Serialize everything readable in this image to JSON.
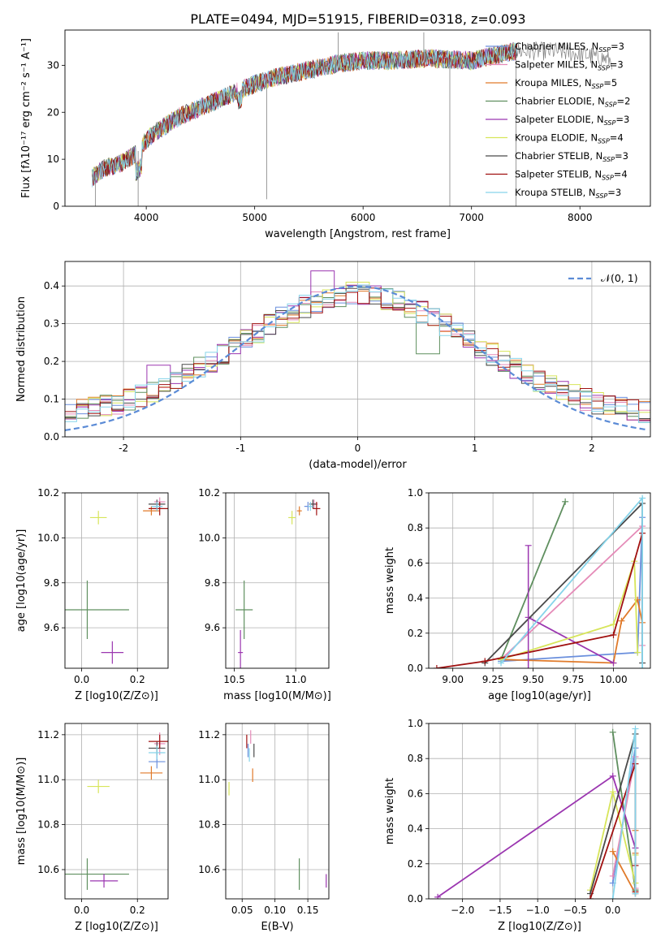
{
  "title": "PLATE=0494, MJD=51915, FIBERID=0318, z=0.093",
  "colors": {
    "Chabrier MILES": "#6a8fdd",
    "Salpeter MILES": "#e58bb8",
    "Kroupa MILES": "#e07a2a",
    "Chabrier ELODIE": "#5f8f5f",
    "Salpeter ELODIE": "#9b36b0",
    "Kroupa ELODIE": "#d7e55a",
    "Chabrier STELIB": "#4a4a4a",
    "Salpeter STELIB": "#a01010",
    "Kroupa STELIB": "#86d4ea",
    "observed": "#808080",
    "gaussian": "#5b8bd6"
  },
  "chart_data": [
    {
      "id": "spectrum",
      "type": "line",
      "xlabel": "wavelength [Angstrom, rest frame]",
      "ylabel": "Flux [fλ10⁻¹⁷ erg cm⁻² s⁻¹ A⁻¹]",
      "xlim": [
        3250,
        8650
      ],
      "ylim": [
        0,
        37.5
      ],
      "xticks": [
        4000,
        5000,
        6000,
        7000,
        8000
      ],
      "yticks": [
        0,
        10,
        20,
        30
      ],
      "legend_placement": "right",
      "continuum": {
        "x": [
          3500,
          3600,
          3750,
          3900,
          4000,
          4100,
          4300,
          4500,
          4800,
          5000,
          5200,
          5500,
          5800,
          6000,
          6300,
          6600,
          7000,
          7400,
          7800,
          8100,
          8300
        ],
        "y": [
          6,
          8,
          9,
          11,
          14,
          16,
          19,
          21,
          24,
          26,
          27.5,
          29,
          30.5,
          31,
          31,
          31.5,
          31,
          33,
          33,
          32,
          31
        ]
      },
      "spikes": [
        {
          "x": 3530,
          "y": 0
        },
        {
          "x": 3925,
          "y": 0
        },
        {
          "x": 5110,
          "y": 1.5
        },
        {
          "x": 5770,
          "y": 37
        },
        {
          "x": 6560,
          "y": 37
        },
        {
          "x": 6800,
          "y": 0
        },
        {
          "x": 7410,
          "y": 0
        }
      ],
      "legend": [
        "Chabrier MILES, NSSP=3",
        "Salpeter MILES, NSSP=3",
        "Kroupa MILES, NSSP=5",
        "Chabrier ELODIE, NSSP=2",
        "Salpeter ELODIE, NSSP=3",
        "Kroupa ELODIE, NSSP=4",
        "Chabrier STELIB, NSSP=3",
        "Salpeter STELIB, NSSP=4",
        "Kroupa STELIB, NSSP=3"
      ]
    },
    {
      "id": "residuals",
      "type": "line",
      "xlabel": "(data-model)/error",
      "ylabel": "Normed distribution",
      "xlim": [
        -2.5,
        2.5
      ],
      "ylim": [
        0,
        0.465
      ],
      "xticks": [
        -2,
        -1,
        0,
        1,
        2
      ],
      "yticks": [
        0.0,
        0.1,
        0.2,
        0.3,
        0.4
      ],
      "grid": true,
      "bin_width": 0.1,
      "legend": [
        "𝒩(0, 1)"
      ],
      "legend_placement": "top-right",
      "peak_bins": [
        {
          "x": -0.3,
          "y": 0.44,
          "series": "Salpeter ELODIE"
        },
        {
          "x": 0.0,
          "y": 0.41,
          "series": "Kroupa ELODIE"
        },
        {
          "x": 0.6,
          "y": 0.22,
          "series": "Chabrier ELODIE"
        },
        {
          "x": -1.7,
          "y": 0.19,
          "series": "Salpeter ELODIE"
        }
      ]
    },
    {
      "id": "age-vs-Z",
      "type": "scatter",
      "xlabel": "Z [log10(Z/Z⊙)]",
      "ylabel": "age  [log10(age/yr)]",
      "xlim": [
        -0.06,
        0.31
      ],
      "ylim": [
        9.42,
        10.2
      ],
      "xticks": [
        0.0,
        0.2
      ],
      "xticklabels": [
        "0.0",
        "0.2"
      ],
      "yticks": [
        9.6,
        9.8,
        10.0,
        10.2
      ],
      "yticklabels": [
        "9.6",
        "9.8",
        "10.0",
        "10.2"
      ],
      "grid": true,
      "points": [
        {
          "series": "Chabrier MILES",
          "x": 0.27,
          "y": 10.14,
          "xerr": 0.02,
          "yerr": 0.02
        },
        {
          "series": "Salpeter MILES",
          "x": 0.28,
          "y": 10.16,
          "xerr": 0.02,
          "yerr": 0.02
        },
        {
          "series": "Kroupa MILES",
          "x": 0.25,
          "y": 10.12,
          "xerr": 0.03,
          "yerr": 0.02
        },
        {
          "series": "Chabrier ELODIE",
          "x": 0.02,
          "y": 9.68,
          "xerr": 0.15,
          "yerr": 0.13
        },
        {
          "series": "Salpeter ELODIE",
          "x": 0.11,
          "y": 9.49,
          "xerr": 0.04,
          "yerr": 0.05
        },
        {
          "series": "Kroupa ELODIE",
          "x": 0.06,
          "y": 10.09,
          "xerr": 0.03,
          "yerr": 0.03
        },
        {
          "series": "Chabrier STELIB",
          "x": 0.27,
          "y": 10.15,
          "xerr": 0.03,
          "yerr": 0.02
        },
        {
          "series": "Salpeter STELIB",
          "x": 0.28,
          "y": 10.13,
          "xerr": 0.04,
          "yerr": 0.03
        },
        {
          "series": "Kroupa STELIB",
          "x": 0.27,
          "y": 10.14,
          "xerr": 0.02,
          "yerr": 0.02
        }
      ]
    },
    {
      "id": "age-vs-mass",
      "type": "scatter",
      "xlabel": "mass [log10(M/M⊙)]",
      "ylabel": "",
      "xlim": [
        10.43,
        11.27
      ],
      "ylim": [
        9.42,
        10.2
      ],
      "xticks": [
        10.5,
        11.0
      ],
      "xticklabels": [
        "10.5",
        "11.0"
      ],
      "yticks": [
        9.6,
        9.8,
        10.0,
        10.2
      ],
      "yticklabels": [
        "9.6",
        "9.8",
        "10.0",
        "10.2"
      ],
      "grid": true,
      "points": [
        {
          "series": "Chabrier MILES",
          "x": 11.1,
          "y": 10.14,
          "xerr": 0.03,
          "yerr": 0.02
        },
        {
          "series": "Salpeter MILES",
          "x": 11.15,
          "y": 10.15,
          "xerr": 0.03,
          "yerr": 0.02
        },
        {
          "series": "Kroupa MILES",
          "x": 11.03,
          "y": 10.12,
          "xerr": 0.02,
          "yerr": 0.02
        },
        {
          "series": "Chabrier ELODIE",
          "x": 10.58,
          "y": 9.68,
          "xerr": 0.07,
          "yerr": 0.13
        },
        {
          "series": "Salpeter ELODIE",
          "x": 10.55,
          "y": 9.49,
          "xerr": 0.02,
          "yerr": 0.1
        },
        {
          "series": "Kroupa ELODIE",
          "x": 10.97,
          "y": 10.09,
          "xerr": 0.03,
          "yerr": 0.03
        },
        {
          "series": "Chabrier STELIB",
          "x": 11.14,
          "y": 10.15,
          "xerr": 0.03,
          "yerr": 0.02
        },
        {
          "series": "Salpeter STELIB",
          "x": 11.17,
          "y": 10.13,
          "xerr": 0.03,
          "yerr": 0.03
        },
        {
          "series": "Kroupa STELIB",
          "x": 11.12,
          "y": 10.14,
          "xerr": 0.02,
          "yerr": 0.02
        }
      ]
    },
    {
      "id": "weight-vs-age",
      "type": "line",
      "xlabel": "age  [log10(age/yr)]",
      "ylabel": "mass weight",
      "xlim": [
        8.85,
        10.23
      ],
      "ylim": [
        0,
        1
      ],
      "xticks": [
        9.0,
        9.25,
        9.5,
        9.75,
        10.0
      ],
      "xticklabels": [
        "9.00",
        "9.25",
        "9.50",
        "9.75",
        "10.00"
      ],
      "yticks": [
        0.0,
        0.2,
        0.4,
        0.6,
        0.8,
        1.0
      ],
      "yticklabels": [
        "0.0",
        "0.2",
        "0.4",
        "0.6",
        "0.8",
        "1.0"
      ],
      "grid": true,
      "series": [
        {
          "name": "Chabrier MILES",
          "x": [
            9.3,
            10.15,
            10.18
          ],
          "y": [
            0.04,
            0.09,
            0.86
          ]
        },
        {
          "name": "Salpeter MILES",
          "x": [
            9.3,
            10.18,
            10.18
          ],
          "y": [
            0.05,
            0.81,
            0.13
          ]
        },
        {
          "name": "Kroupa MILES",
          "x": [
            9.3,
            10.0,
            10.05,
            10.15,
            10.18
          ],
          "y": [
            0.05,
            0.03,
            0.27,
            0.39,
            0.26
          ]
        },
        {
          "name": "Chabrier ELODIE",
          "x": [
            9.3,
            9.7
          ],
          "y": [
            0.05,
            0.95
          ]
        },
        {
          "name": "Salpeter ELODIE",
          "x": [
            9.47,
            10.0
          ],
          "y": [
            0.29,
            0.03
          ]
        },
        {
          "name": "Kroupa ELODIE",
          "x": [
            9.3,
            10.0,
            10.13,
            10.15
          ],
          "y": [
            0.05,
            0.25,
            0.61,
            0.09
          ]
        },
        {
          "name": "Chabrier STELIB",
          "x": [
            9.2,
            10.18,
            10.18
          ],
          "y": [
            0.03,
            0.94,
            0.03
          ]
        },
        {
          "name": "Salpeter STELIB",
          "x": [
            8.9,
            9.2,
            10.0,
            10.18
          ],
          "y": [
            0.0,
            0.04,
            0.19,
            0.77
          ]
        },
        {
          "name": "Kroupa STELIB",
          "x": [
            9.3,
            10.18,
            10.18
          ],
          "y": [
            0.03,
            0.97,
            0.0
          ]
        }
      ],
      "errorbars": [
        {
          "series": "Salpeter ELODIE",
          "x": 9.47,
          "y": 0.7,
          "yerr": [
            0.7,
            0.0
          ]
        }
      ]
    },
    {
      "id": "mass-vs-Z",
      "type": "scatter",
      "xlabel": "Z [log10(Z/Z⊙)]",
      "ylabel": "mass [log10(M/M⊙)]",
      "xlim": [
        -0.06,
        0.31
      ],
      "ylim": [
        10.47,
        11.25
      ],
      "xticks": [
        0.0,
        0.2
      ],
      "xticklabels": [
        "0.0",
        "0.2"
      ],
      "yticks": [
        10.6,
        10.8,
        11.0,
        11.2
      ],
      "yticklabels": [
        "10.6",
        "10.8",
        "11.0",
        "11.2"
      ],
      "grid": true,
      "points": [
        {
          "series": "Chabrier MILES",
          "x": 0.27,
          "y": 11.08,
          "xerr": 0.03,
          "yerr": 0.03
        },
        {
          "series": "Salpeter MILES",
          "x": 0.28,
          "y": 11.16,
          "xerr": 0.02,
          "yerr": 0.05
        },
        {
          "series": "Kroupa MILES",
          "x": 0.25,
          "y": 11.03,
          "xerr": 0.04,
          "yerr": 0.03
        },
        {
          "series": "Chabrier ELODIE",
          "x": 0.02,
          "y": 10.58,
          "xerr": 0.15,
          "yerr": 0.07
        },
        {
          "series": "Salpeter ELODIE",
          "x": 0.08,
          "y": 10.55,
          "xerr": 0.05,
          "yerr": 0.03
        },
        {
          "series": "Kroupa ELODIE",
          "x": 0.06,
          "y": 10.97,
          "xerr": 0.04,
          "yerr": 0.03
        },
        {
          "series": "Chabrier STELIB",
          "x": 0.27,
          "y": 11.14,
          "xerr": 0.03,
          "yerr": 0.03
        },
        {
          "series": "Salpeter STELIB",
          "x": 0.28,
          "y": 11.17,
          "xerr": 0.04,
          "yerr": 0.03
        },
        {
          "series": "Kroupa STELIB",
          "x": 0.27,
          "y": 11.12,
          "xerr": 0.03,
          "yerr": 0.03
        }
      ]
    },
    {
      "id": "mass-vs-ebv",
      "type": "scatter",
      "xlabel": "E(B-V)",
      "ylabel": "",
      "xlim": [
        0.025,
        0.182
      ],
      "ylim": [
        10.47,
        11.25
      ],
      "xticks": [
        0.05,
        0.1,
        0.15
      ],
      "xticklabels": [
        "0.05",
        "0.10",
        "0.15"
      ],
      "yticks": [
        10.6,
        10.8,
        11.0,
        11.2
      ],
      "yticklabels": [
        "10.6",
        "10.8",
        "11.0",
        "11.2"
      ],
      "grid": true,
      "points": [
        {
          "series": "Chabrier MILES",
          "x": 0.059,
          "y": 11.13,
          "xerr": 0.0,
          "yerr": 0.03
        },
        {
          "series": "Salpeter MILES",
          "x": 0.063,
          "y": 11.19,
          "xerr": 0.0,
          "yerr": 0.03
        },
        {
          "series": "Kroupa MILES",
          "x": 0.066,
          "y": 11.02,
          "xerr": 0.0,
          "yerr": 0.03
        },
        {
          "series": "Chabrier ELODIE",
          "x": 0.137,
          "y": 10.58,
          "xerr": 0.0,
          "yerr": 0.07
        },
        {
          "series": "Salpeter ELODIE",
          "x": 0.178,
          "y": 10.55,
          "xerr": 0.0,
          "yerr": 0.03
        },
        {
          "series": "Kroupa ELODIE",
          "x": 0.03,
          "y": 10.96,
          "xerr": 0.0,
          "yerr": 0.03
        },
        {
          "series": "Chabrier STELIB",
          "x": 0.068,
          "y": 11.13,
          "xerr": 0.0,
          "yerr": 0.03
        },
        {
          "series": "Salpeter STELIB",
          "x": 0.057,
          "y": 11.17,
          "xerr": 0.0,
          "yerr": 0.03
        },
        {
          "series": "Kroupa STELIB",
          "x": 0.061,
          "y": 11.11,
          "xerr": 0.0,
          "yerr": 0.03
        }
      ]
    },
    {
      "id": "weight-vs-Z",
      "type": "line",
      "xlabel": "Z [log10(Z/Z⊙)]",
      "ylabel": "mass weight",
      "xlim": [
        -2.45,
        0.5
      ],
      "ylim": [
        0,
        1
      ],
      "xticks": [
        -2.0,
        -1.5,
        -1.0,
        -0.5,
        0.0
      ],
      "xticklabels": [
        "−2.0",
        "−1.5",
        "−1.0",
        "−0.5",
        "0.0"
      ],
      "yticks": [
        0.0,
        0.2,
        0.4,
        0.6,
        0.8,
        1.0
      ],
      "yticklabels": [
        "0.0",
        "0.2",
        "0.4",
        "0.6",
        "0.8",
        "1.0"
      ],
      "grid": true,
      "series": [
        {
          "name": "Chabrier MILES",
          "x": [
            0.0,
            0.3,
            0.3
          ],
          "y": [
            0.09,
            0.86,
            0.05
          ]
        },
        {
          "name": "Salpeter MILES",
          "x": [
            0.0,
            0.3,
            0.3
          ],
          "y": [
            0.13,
            0.81,
            0.06
          ]
        },
        {
          "name": "Kroupa MILES",
          "x": [
            0.0,
            0.3,
            0.3,
            0.3,
            0.3
          ],
          "y": [
            0.27,
            0.03,
            0.39,
            0.05,
            0.26
          ]
        },
        {
          "name": "Chabrier ELODIE",
          "x": [
            0.0,
            0.3
          ],
          "y": [
            0.95,
            0.05
          ]
        },
        {
          "name": "Salpeter ELODIE",
          "x": [
            -2.33,
            0.0,
            0.3
          ],
          "y": [
            0.01,
            0.7,
            0.29
          ]
        },
        {
          "name": "Kroupa ELODIE",
          "x": [
            -0.3,
            0.0,
            0.3,
            0.3
          ],
          "y": [
            0.05,
            0.61,
            0.09,
            0.25
          ]
        },
        {
          "name": "Chabrier STELIB",
          "x": [
            -0.3,
            0.3,
            0.3
          ],
          "y": [
            0.03,
            0.94,
            0.03
          ]
        },
        {
          "name": "Salpeter STELIB",
          "x": [
            -0.3,
            0.3,
            0.3,
            0.3
          ],
          "y": [
            0.0,
            0.77,
            0.19,
            0.04
          ]
        },
        {
          "name": "Kroupa STELIB",
          "x": [
            0.0,
            0.3,
            0.3
          ],
          "y": [
            0.0,
            0.97,
            0.03
          ]
        }
      ]
    }
  ]
}
